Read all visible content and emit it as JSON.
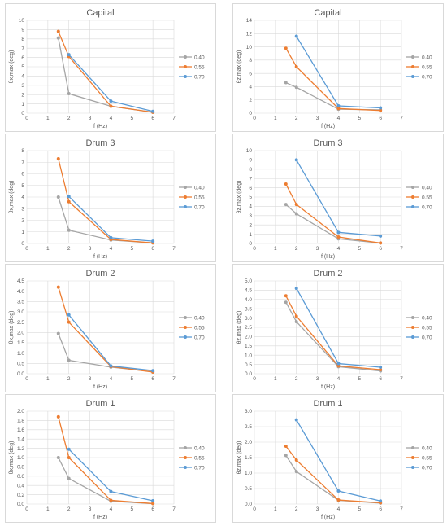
{
  "colors": {
    "0.40": "#a5a5a5",
    "0.55": "#ed7d31",
    "0.70": "#5b9bd5"
  },
  "chart_data": [
    {
      "type": "line",
      "title": "Capital",
      "xlabel": "f (Hz)",
      "ylabel": "θx,max (deg)",
      "xlim": [
        0,
        7
      ],
      "ylim": [
        0,
        10
      ],
      "ystep": 1,
      "ydecimals": 0,
      "legend": "right",
      "grid": true,
      "series": [
        {
          "name": "0.40",
          "x": [
            1.5,
            2,
            4,
            6
          ],
          "y": [
            8.1,
            2.1,
            0.75,
            0.1
          ]
        },
        {
          "name": "0.55",
          "x": [
            1.5,
            2,
            4,
            6
          ],
          "y": [
            8.8,
            6.1,
            0.75,
            0.1
          ]
        },
        {
          "name": "0.70",
          "x": [
            2,
            4,
            6
          ],
          "y": [
            6.3,
            1.3,
            0.2
          ]
        }
      ]
    },
    {
      "type": "line",
      "title": "Capital",
      "xlabel": "f (Hz)",
      "ylabel": "θz,max (deg)",
      "xlim": [
        0,
        7
      ],
      "ylim": [
        0,
        14
      ],
      "ystep": 2,
      "ydecimals": 0,
      "legend": "right",
      "grid": true,
      "series": [
        {
          "name": "0.40",
          "x": [
            1.5,
            2,
            4,
            6
          ],
          "y": [
            4.6,
            3.9,
            0.6,
            0.5
          ]
        },
        {
          "name": "0.55",
          "x": [
            1.5,
            2,
            4,
            6
          ],
          "y": [
            9.8,
            7.0,
            0.7,
            0.4
          ]
        },
        {
          "name": "0.70",
          "x": [
            2,
            4,
            6
          ],
          "y": [
            11.6,
            1.1,
            0.8
          ]
        }
      ]
    },
    {
      "type": "line",
      "title": "Drum 3",
      "xlabel": "f (Hz)",
      "ylabel": "θx,max (deg)",
      "xlim": [
        0,
        7
      ],
      "ylim": [
        0,
        8
      ],
      "ystep": 1,
      "ydecimals": 0,
      "legend": "right",
      "grid": true,
      "series": [
        {
          "name": "0.40",
          "x": [
            1.5,
            2,
            4,
            6
          ],
          "y": [
            4.0,
            1.15,
            0.3,
            0.05
          ]
        },
        {
          "name": "0.55",
          "x": [
            1.5,
            2,
            4,
            6
          ],
          "y": [
            7.3,
            3.6,
            0.35,
            0.05
          ]
        },
        {
          "name": "0.70",
          "x": [
            2,
            4,
            6
          ],
          "y": [
            4.05,
            0.5,
            0.2
          ]
        }
      ]
    },
    {
      "type": "line",
      "title": "Drum 3",
      "xlabel": "f (Hz)",
      "ylabel": "θz,max (deg)",
      "xlim": [
        0,
        7
      ],
      "ylim": [
        0,
        10
      ],
      "ystep": 1,
      "ydecimals": 0,
      "legend": "right",
      "grid": true,
      "series": [
        {
          "name": "0.40",
          "x": [
            1.5,
            2,
            4,
            6
          ],
          "y": [
            4.2,
            3.2,
            0.5,
            0.05
          ]
        },
        {
          "name": "0.55",
          "x": [
            1.5,
            2,
            4,
            6
          ],
          "y": [
            6.4,
            4.2,
            0.7,
            0.05
          ]
        },
        {
          "name": "0.70",
          "x": [
            2,
            4,
            6
          ],
          "y": [
            9.0,
            1.2,
            0.8
          ]
        }
      ]
    },
    {
      "type": "line",
      "title": "Drum 2",
      "xlabel": "f (Hz)",
      "ylabel": "θx,max (deg)",
      "xlim": [
        0,
        7
      ],
      "ylim": [
        0,
        4.5
      ],
      "ystep": 0.5,
      "ydecimals": 1,
      "legend": "right",
      "grid": true,
      "series": [
        {
          "name": "0.40",
          "x": [
            1.5,
            2,
            4,
            6
          ],
          "y": [
            1.95,
            0.65,
            0.32,
            0.1
          ]
        },
        {
          "name": "0.55",
          "x": [
            1.5,
            2,
            4,
            6
          ],
          "y": [
            4.2,
            2.5,
            0.35,
            0.08
          ]
        },
        {
          "name": "0.70",
          "x": [
            2,
            4,
            6
          ],
          "y": [
            2.85,
            0.38,
            0.15
          ]
        }
      ]
    },
    {
      "type": "line",
      "title": "Drum 2",
      "xlabel": "f (Hz)",
      "ylabel": "θz,max (deg)",
      "xlim": [
        0,
        7
      ],
      "ylim": [
        0,
        5
      ],
      "ystep": 0.5,
      "ydecimals": 1,
      "legend": "right",
      "grid": true,
      "series": [
        {
          "name": "0.40",
          "x": [
            1.5,
            2,
            4,
            6
          ],
          "y": [
            3.85,
            2.8,
            0.38,
            0.15
          ]
        },
        {
          "name": "0.55",
          "x": [
            1.5,
            2,
            4,
            6
          ],
          "y": [
            4.2,
            3.1,
            0.42,
            0.22
          ]
        },
        {
          "name": "0.70",
          "x": [
            2,
            4,
            6
          ],
          "y": [
            4.6,
            0.55,
            0.35
          ]
        }
      ]
    },
    {
      "type": "line",
      "title": "Drum 1",
      "xlabel": "f (Hz)",
      "ylabel": "θx,max (deg)",
      "xlim": [
        0,
        7
      ],
      "ylim": [
        0,
        2
      ],
      "ystep": 0.2,
      "ydecimals": 1,
      "legend": "right",
      "grid": true,
      "series": [
        {
          "name": "0.40",
          "x": [
            1.5,
            2,
            4,
            6
          ],
          "y": [
            1.0,
            0.55,
            0.06,
            0.01
          ]
        },
        {
          "name": "0.55",
          "x": [
            1.5,
            2,
            4,
            6
          ],
          "y": [
            1.88,
            1.0,
            0.08,
            0.01
          ]
        },
        {
          "name": "0.70",
          "x": [
            2,
            4,
            6
          ],
          "y": [
            1.18,
            0.27,
            0.07
          ]
        }
      ]
    },
    {
      "type": "line",
      "title": "Drum 1",
      "xlabel": "f (Hz)",
      "ylabel": "θz,max (deg)",
      "xlim": [
        0,
        7
      ],
      "ylim": [
        0,
        3
      ],
      "ystep": 0.5,
      "ydecimals": 1,
      "legend": "right",
      "grid": true,
      "series": [
        {
          "name": "0.40",
          "x": [
            1.5,
            2,
            4,
            6
          ],
          "y": [
            1.57,
            1.05,
            0.12,
            0.03
          ]
        },
        {
          "name": "0.55",
          "x": [
            1.5,
            2,
            4,
            6
          ],
          "y": [
            1.87,
            1.42,
            0.13,
            0.04
          ]
        },
        {
          "name": "0.70",
          "x": [
            2,
            4,
            6
          ],
          "y": [
            2.72,
            0.42,
            0.1
          ]
        }
      ]
    }
  ]
}
